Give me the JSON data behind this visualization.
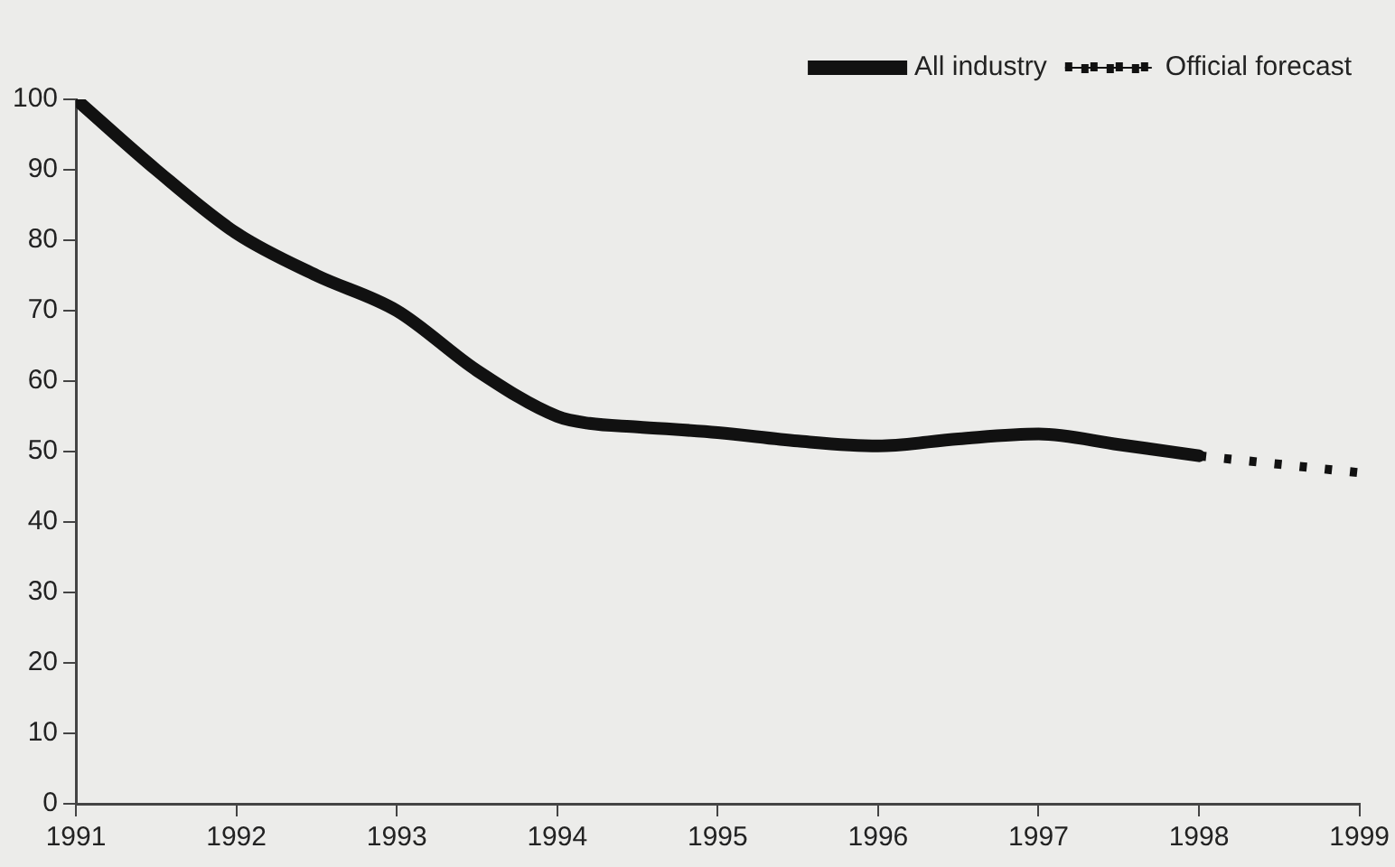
{
  "chart_data": {
    "type": "line",
    "xlim": [
      1991,
      1999
    ],
    "xticks": [
      1991,
      1992,
      1993,
      1994,
      1995,
      1996,
      1997,
      1998,
      1999
    ],
    "ylim": [
      0,
      100
    ],
    "yticks": [
      0,
      10,
      20,
      30,
      40,
      50,
      60,
      70,
      80,
      90,
      100
    ],
    "grid": false,
    "legend": "top right",
    "marker": "none",
    "series": [
      {
        "name": "All industry",
        "color": "#111111",
        "line_style": "solid",
        "x": [
          1991,
          1991.5,
          1992,
          1992.5,
          1993,
          1993.5,
          1994,
          1994.2,
          1994.5,
          1995,
          1995.5,
          1996,
          1996.5,
          1997,
          1997.5,
          1998
        ],
        "values": [
          100,
          90,
          81,
          75,
          70,
          61.5,
          55,
          54,
          53.5,
          52.7,
          51.5,
          50.8,
          51.8,
          52.5,
          51,
          49.4
        ]
      },
      {
        "name": "Official forecast",
        "color": "#111111",
        "line_style": "dotted",
        "x": [
          1998,
          1999
        ],
        "values": [
          49.4,
          47
        ]
      }
    ]
  }
}
